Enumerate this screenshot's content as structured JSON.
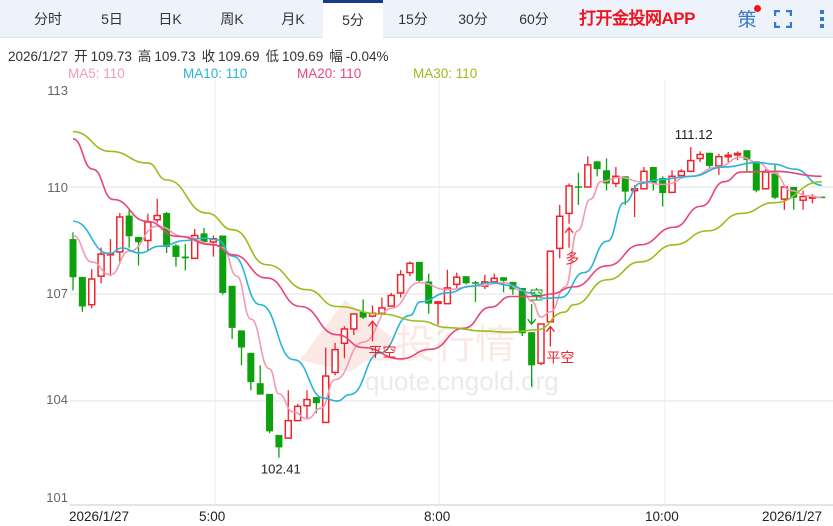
{
  "tabs": [
    {
      "label": "分时"
    },
    {
      "label": "5日"
    },
    {
      "label": "日K"
    },
    {
      "label": "周K"
    },
    {
      "label": "月K"
    },
    {
      "label": "5分",
      "active": true
    },
    {
      "label": "15分"
    },
    {
      "label": "30分"
    },
    {
      "label": "60分"
    }
  ],
  "app_link": "打开金投网APP",
  "icons": {
    "strategy": "策",
    "strategy_icon": "strategy-icon",
    "fullscreen": "fullscreen-icon",
    "more": "more-vertical-icon"
  },
  "info": {
    "date": "2026/1/27",
    "open_label": "开",
    "open": "109.73",
    "high_label": "高",
    "high": "109.73",
    "close_label": "收",
    "close": "109.69",
    "low_label": "低",
    "low": "109.69",
    "change_label": "幅",
    "change": "-0.04%"
  },
  "ma_legend": [
    {
      "text": "MA5: 110",
      "color": "#f49ab5"
    },
    {
      "text": "MA10: 110",
      "color": "#27b5d8"
    },
    {
      "text": "MA20: 110",
      "color": "#e8457a"
    },
    {
      "text": "MA30: 110",
      "color": "#9cbc1c"
    }
  ],
  "watermark": {
    "cn": "金投行情",
    "url": "quote.cngold.org"
  },
  "colors": {
    "up": "#f0232a",
    "down": "#0da10d",
    "grid": "#ececec"
  },
  "chart_data": {
    "type": "candlestick",
    "interval": "5分",
    "ylim": [
      101,
      113
    ],
    "yticks": [
      "113",
      "110",
      "107",
      "104",
      "101"
    ],
    "xticks": [
      "2026/1/27",
      "5:00",
      "8:00",
      "10:00",
      "2026/1/27"
    ],
    "max_label": "111.12",
    "min_label": "102.41",
    "ohlc": [
      [
        108.54,
        108.73,
        107.1,
        107.47
      ],
      [
        107.48,
        107.48,
        106.5,
        106.65
      ],
      [
        106.7,
        107.7,
        106.6,
        107.42
      ],
      [
        107.5,
        108.3,
        107.3,
        108.12
      ],
      [
        108.1,
        108.54,
        107.5,
        108.14
      ],
      [
        108.18,
        109.27,
        107.9,
        109.16
      ],
      [
        109.2,
        109.35,
        108.3,
        108.62
      ],
      [
        108.6,
        108.6,
        107.8,
        108.45
      ],
      [
        108.5,
        109.25,
        108.2,
        109.02
      ],
      [
        109.08,
        109.67,
        109.0,
        109.2
      ],
      [
        109.27,
        109.3,
        108.15,
        108.32
      ],
      [
        108.36,
        108.4,
        107.77,
        108.04
      ],
      [
        108.05,
        108.4,
        107.66,
        108.0
      ],
      [
        108.0,
        108.82,
        108.0,
        108.64
      ],
      [
        108.7,
        108.85,
        108.4,
        108.46
      ],
      [
        108.46,
        108.64,
        108.05,
        108.55
      ],
      [
        108.64,
        108.64,
        106.98,
        107.03
      ],
      [
        107.23,
        107.23,
        105.74,
        106.05
      ],
      [
        105.98,
        105.98,
        105.0,
        105.5
      ],
      [
        105.35,
        105.35,
        104.3,
        104.53
      ],
      [
        104.5,
        105.0,
        104.18,
        104.18
      ],
      [
        104.2,
        104.2,
        103.1,
        103.15
      ],
      [
        103.05,
        103.05,
        102.41,
        102.7
      ],
      [
        102.96,
        104.3,
        102.96,
        103.45
      ],
      [
        103.45,
        103.92,
        103.45,
        103.85
      ],
      [
        103.87,
        104.3,
        103.5,
        104.04
      ],
      [
        104.11,
        104.11,
        103.66,
        103.94
      ],
      [
        103.4,
        105.5,
        103.38,
        104.7
      ],
      [
        104.8,
        105.63,
        104.72,
        105.44
      ],
      [
        105.62,
        106.1,
        105.2,
        106.02
      ],
      [
        106.02,
        106.44,
        105.85,
        106.44
      ],
      [
        106.5,
        106.85,
        106.3,
        106.34
      ],
      [
        106.38,
        106.68,
        106.35,
        106.46
      ],
      [
        106.46,
        106.9,
        106.4,
        106.61
      ],
      [
        106.66,
        107.03,
        106.66,
        106.96
      ],
      [
        107.03,
        107.67,
        106.9,
        107.54
      ],
      [
        107.6,
        107.91,
        107.5,
        107.86
      ],
      [
        107.9,
        107.9,
        107.32,
        107.37
      ],
      [
        107.35,
        107.57,
        106.45,
        106.73
      ],
      [
        106.75,
        106.78,
        106.14,
        106.78
      ],
      [
        106.73,
        107.68,
        106.73,
        107.17
      ],
      [
        107.27,
        107.6,
        107.17,
        107.47
      ],
      [
        107.5,
        107.5,
        107.27,
        107.3
      ],
      [
        107.33,
        107.37,
        106.78,
        107.32
      ],
      [
        107.22,
        107.54,
        107.14,
        107.34
      ],
      [
        107.34,
        107.57,
        107.3,
        107.44
      ],
      [
        107.47,
        107.47,
        107.05,
        107.37
      ],
      [
        107.34,
        107.34,
        106.98,
        107.13
      ],
      [
        107.17,
        107.17,
        105.82,
        105.9
      ],
      [
        105.93,
        105.93,
        104.4,
        105.0
      ],
      [
        105.06,
        106.16,
        105.0,
        106.16
      ],
      [
        106.22,
        108.2,
        106.2,
        108.2
      ],
      [
        108.28,
        109.5,
        108.0,
        109.18
      ],
      [
        109.26,
        110.1,
        108.97,
        110.03
      ],
      [
        110.02,
        110.4,
        109.5,
        109.98
      ],
      [
        110.0,
        110.86,
        110.0,
        110.62
      ],
      [
        110.72,
        110.72,
        110.3,
        110.5
      ],
      [
        110.47,
        110.8,
        109.9,
        110.1
      ],
      [
        110.1,
        110.56,
        110.0,
        110.3
      ],
      [
        110.3,
        110.3,
        109.5,
        109.87
      ],
      [
        109.9,
        110.05,
        109.16,
        109.95
      ],
      [
        109.95,
        110.56,
        109.95,
        110.44
      ],
      [
        110.56,
        110.56,
        109.9,
        110.1
      ],
      [
        110.25,
        110.3,
        109.45,
        109.83
      ],
      [
        109.85,
        110.47,
        109.85,
        110.3
      ],
      [
        110.32,
        110.5,
        110.32,
        110.44
      ],
      [
        110.44,
        111.12,
        110.44,
        110.74
      ],
      [
        110.8,
        111.0,
        110.7,
        110.91
      ],
      [
        110.96,
        110.96,
        110.5,
        110.59
      ],
      [
        110.59,
        110.93,
        110.34,
        110.85
      ],
      [
        110.87,
        110.98,
        110.7,
        110.89
      ],
      [
        110.92,
        111.0,
        110.75,
        110.94
      ],
      [
        111.03,
        111.03,
        110.44,
        110.76
      ],
      [
        110.72,
        110.72,
        109.85,
        109.9
      ],
      [
        109.95,
        110.5,
        109.95,
        110.42
      ],
      [
        110.4,
        110.64,
        109.66,
        109.7
      ],
      [
        109.66,
        110.0,
        109.36,
        110.0
      ],
      [
        110.0,
        110.0,
        109.36,
        109.7
      ],
      [
        109.63,
        109.9,
        109.36,
        109.73
      ],
      [
        109.72,
        109.8,
        109.54,
        109.73
      ],
      [
        109.73,
        109.73,
        109.69,
        109.69
      ]
    ],
    "ma": {
      "MA5": [
        [
          1,
          108.64
        ],
        [
          3,
          107.9
        ],
        [
          5,
          107.54
        ],
        [
          7,
          108.2
        ],
        [
          10,
          108.9
        ],
        [
          13,
          108.6
        ],
        [
          16,
          108.4
        ],
        [
          17,
          108.3
        ],
        [
          18.5,
          107.5
        ],
        [
          20,
          106.3
        ],
        [
          22,
          104.9
        ],
        [
          23,
          104.2
        ],
        [
          24.5,
          103.7
        ],
        [
          26,
          103.5
        ],
        [
          27.5,
          103.8
        ],
        [
          29,
          104.6
        ],
        [
          32,
          105.65
        ],
        [
          35,
          106.6
        ],
        [
          38,
          107.32
        ],
        [
          41,
          107.12
        ],
        [
          44,
          107.22
        ],
        [
          47,
          107.32
        ],
        [
          49,
          107.1
        ],
        [
          50,
          106.8
        ],
        [
          51,
          106.35
        ],
        [
          52,
          106.5
        ],
        [
          53.6,
          107.2
        ],
        [
          54.9,
          108.77
        ],
        [
          56.3,
          109.66
        ],
        [
          57.4,
          110.15
        ],
        [
          59.5,
          110.27
        ],
        [
          61.6,
          110.15
        ],
        [
          64.1,
          110.07
        ],
        [
          67,
          110.3
        ],
        [
          69.9,
          110.56
        ],
        [
          72.4,
          110.84
        ],
        [
          74.1,
          110.69
        ],
        [
          75.9,
          110.39
        ],
        [
          77.7,
          109.9
        ],
        [
          79.5,
          109.75
        ],
        [
          81,
          109.7
        ]
      ],
      "MA10": [
        [
          1,
          109.04
        ],
        [
          4.9,
          108.13
        ],
        [
          6.2,
          108.29
        ],
        [
          8.1,
          108.15
        ],
        [
          10.3,
          108.34
        ],
        [
          13.1,
          108.5
        ],
        [
          14.9,
          108.57
        ],
        [
          16.4,
          108.52
        ],
        [
          18.1,
          108.06
        ],
        [
          21,
          106.7
        ],
        [
          24.6,
          105.16
        ],
        [
          27.8,
          104.08
        ],
        [
          29.2,
          104.0
        ],
        [
          30.6,
          104.18
        ],
        [
          33.8,
          105.35
        ],
        [
          37,
          106.4
        ],
        [
          38.1,
          106.78
        ],
        [
          41,
          107.03
        ],
        [
          43.5,
          107.22
        ],
        [
          45.6,
          107.32
        ],
        [
          47.75,
          107.24
        ],
        [
          49.9,
          107.03
        ],
        [
          51.3,
          106.88
        ],
        [
          53.1,
          106.9
        ],
        [
          55.6,
          107.6
        ],
        [
          58.1,
          108.48
        ],
        [
          59.9,
          109.56
        ],
        [
          61.6,
          110.1
        ],
        [
          63.4,
          110.2
        ],
        [
          67,
          110.3
        ],
        [
          70.6,
          110.56
        ],
        [
          74.1,
          110.69
        ],
        [
          75.9,
          110.64
        ],
        [
          78.1,
          110.5
        ],
        [
          81,
          110.05
        ]
      ],
      "MA20": [
        [
          1,
          111.35
        ],
        [
          3.1,
          110.5
        ],
        [
          5.3,
          109.65
        ],
        [
          8.9,
          109.04
        ],
        [
          12.1,
          108.62
        ],
        [
          16,
          108.38
        ],
        [
          18.1,
          108.1
        ],
        [
          21.7,
          107.45
        ],
        [
          25.3,
          106.65
        ],
        [
          29.2,
          105.86
        ],
        [
          32,
          105.5
        ],
        [
          36,
          105.18
        ],
        [
          39.2,
          105.45
        ],
        [
          42.75,
          106.04
        ],
        [
          45.6,
          106.63
        ],
        [
          47.75,
          106.93
        ],
        [
          50.6,
          106.93
        ],
        [
          52,
          107.0
        ],
        [
          54.5,
          107.2
        ],
        [
          58.1,
          107.79
        ],
        [
          61.6,
          108.38
        ],
        [
          65.2,
          108.87
        ],
        [
          68.1,
          109.46
        ],
        [
          70.6,
          110.15
        ],
        [
          72.4,
          110.42
        ],
        [
          75.9,
          110.44
        ],
        [
          81,
          110.3
        ]
      ],
      "MA30": [
        [
          1,
          111.55
        ],
        [
          5,
          111.0
        ],
        [
          9,
          110.67
        ],
        [
          11,
          110.2
        ],
        [
          15.3,
          109.27
        ],
        [
          18.1,
          108.8
        ],
        [
          21.7,
          107.82
        ],
        [
          26,
          107.12
        ],
        [
          29.2,
          106.65
        ],
        [
          33.8,
          106.44
        ],
        [
          38.1,
          106.24
        ],
        [
          41,
          106.06
        ],
        [
          44.9,
          105.96
        ],
        [
          47.75,
          105.93
        ],
        [
          50.6,
          106.0
        ],
        [
          53.5,
          106.49
        ],
        [
          54.5,
          106.7
        ],
        [
          58.1,
          107.4
        ],
        [
          61.6,
          107.9
        ],
        [
          65.2,
          108.38
        ],
        [
          68.8,
          108.77
        ],
        [
          72.4,
          109.26
        ],
        [
          75.9,
          109.56
        ],
        [
          81,
          110.15
        ]
      ]
    },
    "signals": [
      {
        "index": 33,
        "label": "平空",
        "direction": "up"
      },
      {
        "index": 50,
        "label": "空",
        "direction": "down"
      },
      {
        "index": 52,
        "label": "平空",
        "direction": "up"
      },
      {
        "index": 54,
        "label": "多",
        "direction": "up"
      }
    ]
  }
}
